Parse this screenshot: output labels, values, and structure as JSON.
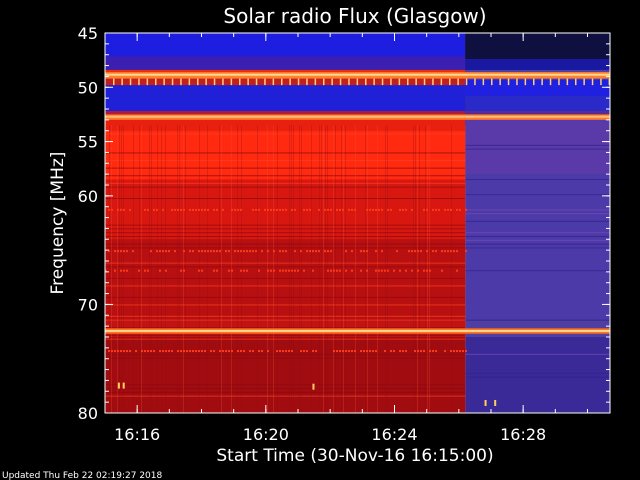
{
  "chart_data": {
    "type": "heatmap",
    "title": "Solar radio Flux (Glasgow)",
    "xlabel": "Start Time (30-Nov-16 16:15:00)",
    "ylabel": "Frequency [MHz]",
    "x_unit": "minutes after 16:15:00",
    "xlim": [
      0.0,
      15.7
    ],
    "ylim": [
      45,
      80
    ],
    "y_inverted": true,
    "x_ticks": [
      {
        "value": 1,
        "label": "16:16"
      },
      {
        "value": 5,
        "label": "16:20"
      },
      {
        "value": 9,
        "label": "16:24"
      },
      {
        "value": 13,
        "label": "16:28"
      }
    ],
    "y_ticks": [
      {
        "value": 45,
        "label": "45"
      },
      {
        "value": 50,
        "label": "50"
      },
      {
        "value": 55,
        "label": "55"
      },
      {
        "value": 60,
        "label": "60"
      },
      {
        "value": 70,
        "label": "70"
      },
      {
        "value": 80,
        "label": "80"
      }
    ],
    "transition_minute": 11.2,
    "colors": {
      "low": "#1a1a80",
      "mid": "#4f3fa0",
      "high": "#e01010",
      "peak": "#ffd890",
      "axis": "#ffffff",
      "background": "#000000"
    },
    "regions": [
      {
        "name": "before",
        "freq_range": [
          45,
          47.2
        ],
        "intensity": "blue"
      },
      {
        "name": "before",
        "freq_range": [
          49.8,
          52.2
        ],
        "intensity": "blue"
      },
      {
        "name": "before",
        "freq_range": [
          53,
          80
        ],
        "intensity": "red"
      },
      {
        "name": "after",
        "freq_range": [
          45,
          80
        ],
        "intensity": "blue-purple"
      }
    ],
    "bright_lines_mhz": [
      48.8,
      52.7,
      72.4
    ]
  },
  "footer": {
    "updated": "Updated Thu Feb 22 02:19:27 2018"
  }
}
